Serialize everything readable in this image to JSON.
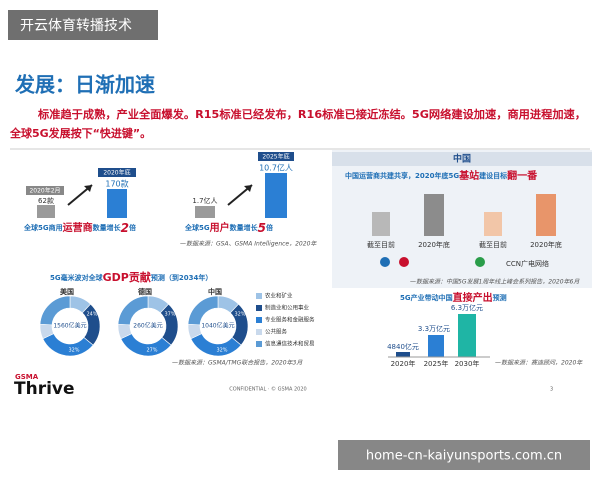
{
  "overlay": {
    "tag": "开云体育转播技术",
    "url": "home-cn-kaiyunsports.com.cn"
  },
  "slide": {
    "title": "发展：日渐加速",
    "intro": [
      "标准趋于成熟，产业全面爆发。R15标准已经发布，R16标准已接近冻结。5G网络建设加速，商用进程加速，",
      "全球5G发展按下“快进键”。"
    ],
    "operators": {
      "start_label": "2020年2月",
      "start_value": "62款",
      "end_label": "2020年底",
      "end_value": "170款",
      "caption_a": "全球5G商用",
      "caption_b": "运营商",
      "caption_c": "数量增长",
      "caption_d": "2",
      "caption_e": "倍"
    },
    "users": {
      "start_value": "1.7亿人",
      "end_label": "2025年底",
      "end_value": "10.7亿人",
      "caption_a": "全球5G",
      "caption_b": "用户",
      "caption_c": "数量增长",
      "caption_d": "5",
      "caption_e": "倍",
      "source": "—数据来源：GSA、GSMA Intelligence，2020年"
    },
    "china": {
      "header": "中国",
      "subtitle_a": "中国运营商共建共享，2020年底5G",
      "subtitle_b": "基站",
      "subtitle_c": "建设目标",
      "subtitle_d": "翻一番",
      "labels": [
        "截至目前",
        "2020年底",
        "截至目前",
        "2020年底"
      ],
      "broadcaster": "CCN广电网络",
      "source": "—数据来源：中国5G发展1周年线上峰会系列报告，2020年6月"
    },
    "gdp": {
      "title_a": "5G毫米波对全球",
      "title_b": "GDP贡献",
      "title_c": "预测（到2034年）",
      "countries": [
        {
          "name": "美国",
          "value": "1560亿美元",
          "pcts": [
            "24%",
            "32%"
          ]
        },
        {
          "name": "德国",
          "value": "260亿美元",
          "pcts": [
            "37%",
            "27%"
          ]
        },
        {
          "name": "中国",
          "value": "1040亿美元",
          "pcts": [
            "32%",
            "32%"
          ]
        }
      ],
      "legend": [
        "农业和矿业",
        "制造业和公用事业",
        "专业服务和金融服务",
        "公共服务",
        "信息通信技术和贸易"
      ],
      "source": "—数据来源：GSMA/TMG联合报告，2020年3月"
    },
    "output": {
      "title_a": "5G产业带动中国",
      "title_b": "直接产出",
      "title_c": "预测",
      "values": [
        "4840亿元",
        "3.3万亿元",
        "6.3万亿元"
      ],
      "years": [
        "2020年",
        "2025年",
        "2030年"
      ],
      "source": "—数据来源：赛迪顾问，2020年"
    },
    "footer": {
      "brand": "GSMA",
      "product": "Thrive",
      "notice": "CONFIDENTIAL · © GSMA 2020",
      "page": "3"
    }
  }
}
